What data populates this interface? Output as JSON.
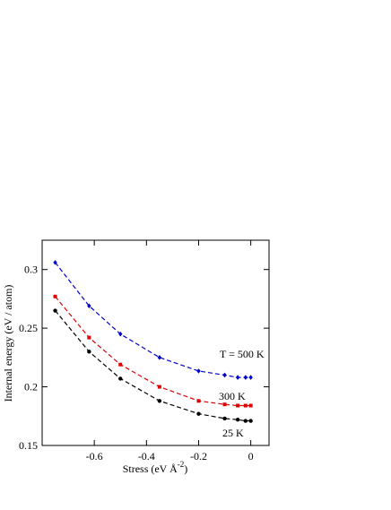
{
  "chart_data": {
    "type": "line",
    "x_label": "Stress  (eV Å",
    "x_label_superscript": "-2",
    "x_label_end": ")",
    "y_label": "Internal  energy  (eV / atom)",
    "x": [
      -0.75,
      -0.62,
      -0.5,
      -0.35,
      -0.2,
      -0.1,
      -0.05,
      -0.02,
      0
    ],
    "series": [
      {
        "name": "T = 500 K",
        "color": "#0000cc",
        "marker": "diamond",
        "values": [
          0.306,
          0.269,
          0.245,
          0.225,
          0.2135,
          0.21,
          0.208,
          0.208,
          0.208
        ]
      },
      {
        "name": "300 K",
        "color": "#dd0000",
        "marker": "square",
        "values": [
          0.277,
          0.242,
          0.219,
          0.2,
          0.188,
          0.185,
          0.184,
          0.184,
          0.184
        ]
      },
      {
        "name": "25 K",
        "color": "#000000",
        "marker": "circle",
        "values": [
          0.265,
          0.23,
          0.207,
          0.188,
          0.177,
          0.173,
          0.172,
          0.171,
          0.171
        ]
      }
    ],
    "xlim": [
      -0.8,
      0.07
    ],
    "ylim": [
      0.15,
      0.325
    ],
    "xticks": [
      -0.6,
      -0.4,
      -0.2,
      0
    ],
    "yticks": [
      0.15,
      0.2,
      0.25,
      0.3
    ]
  }
}
